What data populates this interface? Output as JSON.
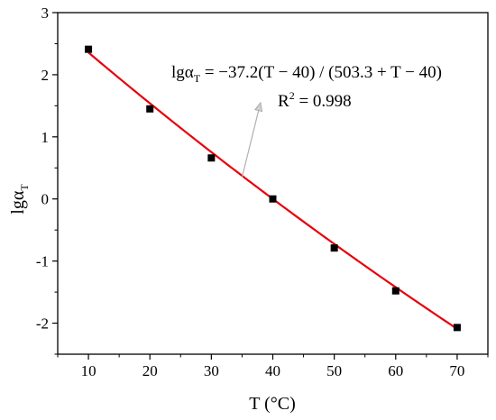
{
  "chart_data": {
    "type": "scatter",
    "title": "",
    "xlabel": "T (°C)",
    "ylabel": {
      "base": "lgα",
      "sub": "T"
    },
    "xlim": [
      5,
      75
    ],
    "ylim": [
      -2.5,
      3
    ],
    "xticks": [
      10,
      20,
      30,
      40,
      50,
      60,
      70
    ],
    "yticks": [
      -2,
      -1,
      0,
      1,
      2,
      3
    ],
    "grid": false,
    "legend": "none",
    "series": [
      {
        "kind": "points",
        "marker": "square",
        "color": "#000000",
        "x": [
          10,
          20,
          30,
          40,
          50,
          60,
          70
        ],
        "y": [
          2.41,
          1.45,
          0.66,
          0.0,
          -0.79,
          -1.48,
          -2.07
        ]
      },
      {
        "kind": "fit-line",
        "color": "#e8000b",
        "equation": {
          "c1": 37.2,
          "c2": 503.3,
          "tref": 40
        }
      }
    ],
    "annotations": [
      {
        "equation_parts": {
          "lhs": "lgα",
          "lhs_sub": "T",
          "rhs": " = −37.2(T − 40) / (503.3 + T − 40)"
        },
        "r2_parts": {
          "lhs": "R",
          "sup": "2",
          "rhs": " = 0.998"
        },
        "arrow_from_data": [
          35,
          0.35
        ],
        "arrow_to_data": [
          38,
          1.55
        ]
      }
    ]
  }
}
